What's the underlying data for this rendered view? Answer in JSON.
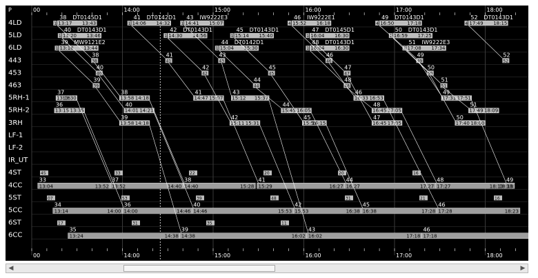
{
  "colors": {
    "background": "#000000",
    "line": "#ffffff",
    "grid": "#3a3a3a",
    "box": "#bdbdbd",
    "bar": "#9e9e9e",
    "cursor": "#ffffff"
  },
  "corner_label": "P",
  "stations": [
    "4LD",
    "5LD",
    "6LD",
    "443",
    "453",
    "463",
    "5RH-1",
    "5RH-2",
    "3RH",
    "LF-1",
    "LF-2",
    "IR_UT",
    "4ST",
    "4CC",
    "5ST",
    "5CC",
    "6ST",
    "6CC"
  ],
  "axis": {
    "start_hour": 13,
    "end_hour": 18.9,
    "top_labels": [
      "00",
      "14:00",
      "15:00",
      "16:00",
      "17:00",
      "18:00"
    ],
    "bottom_labels": [
      "00",
      "14:00",
      "15:00",
      "16:00",
      "17:00",
      "18:00"
    ]
  },
  "loader_ops": [
    {
      "row": "4LD",
      "num": "38",
      "code": "DT0145D1",
      "tag": "1",
      "from": "13:17",
      "to": "13:43"
    },
    {
      "row": "4LD",
      "num": "41",
      "code": "DT0142D1",
      "tag": "1",
      "from": "14:06",
      "to": "14:32"
    },
    {
      "row": "4LD",
      "num": "43",
      "code": "IW9222E3",
      "tag": "1",
      "from": "14:41",
      "to": "15:07"
    },
    {
      "row": "4LD",
      "num": "46",
      "code": "IW9222E1",
      "tag": "4",
      "from": "15:52",
      "to": "16:18"
    },
    {
      "row": "4LD",
      "num": "49",
      "code": "DT0143D1",
      "tag": "4",
      "from": "16:50",
      "to": "17:18"
    },
    {
      "row": "4LD",
      "num": "52",
      "code": "DT0143D1",
      "tag": "4",
      "from": "17:49",
      "to": "18:15"
    },
    {
      "row": "5LD",
      "num": "40",
      "code": "DT0143D1",
      "tag": "1",
      "from": "13:20",
      "to": "13:46"
    },
    {
      "row": "5LD",
      "num": "42",
      "code": "DT0143D1",
      "tag": "1",
      "from": "14:30",
      "to": "14:56"
    },
    {
      "row": "5LD",
      "num": "45",
      "code": "DT0143D1",
      "tag": "1",
      "from": "15:14",
      "to": "15:40"
    },
    {
      "row": "5LD",
      "num": "47",
      "code": "DT0145D1",
      "tag": "1",
      "from": "16:04",
      "to": "16:30"
    },
    {
      "row": "5LD",
      "num": "50",
      "code": "DT0143D1",
      "tag": "1",
      "from": "16:59",
      "to": "17:25"
    },
    {
      "row": "6LD",
      "num": "39",
      "code": "MW9121E2",
      "tag": "1",
      "from": "13:18",
      "to": "13:44"
    },
    {
      "row": "6LD",
      "num": "44",
      "code": "DT0142D1",
      "tag": "1",
      "from": "15:04",
      "to": "15:30"
    },
    {
      "row": "6LD",
      "num": "48",
      "code": "DT0143D1",
      "tag": "1",
      "from": "16:04",
      "to": "16:30"
    },
    {
      "row": "6LD",
      "num": "51",
      "code": "IW9222E3",
      "tag": "1",
      "from": "17:08",
      "to": "17:34"
    }
  ],
  "mid_ops": [
    {
      "row": "443",
      "num": "38",
      "tag": "38"
    },
    {
      "row": "443",
      "num": "41",
      "tag": "41"
    },
    {
      "row": "443",
      "num": "43",
      "tag": "43"
    },
    {
      "row": "443",
      "num": "46",
      "tag": "46"
    },
    {
      "row": "443",
      "num": "49",
      "tag": "49"
    },
    {
      "row": "443",
      "num": "52",
      "tag": "52"
    },
    {
      "row": "453",
      "num": "40",
      "tag": "40"
    },
    {
      "row": "453",
      "num": "42",
      "tag": "42"
    },
    {
      "row": "453",
      "num": "45",
      "tag": "45"
    },
    {
      "row": "453",
      "num": "47",
      "tag": "47"
    },
    {
      "row": "453",
      "num": "50",
      "tag": "50"
    },
    {
      "row": "463",
      "num": "39",
      "tag": "39"
    },
    {
      "row": "463",
      "num": "44",
      "tag": "44"
    },
    {
      "row": "463",
      "num": "48",
      "tag": "48"
    },
    {
      "row": "463",
      "num": "51",
      "tag": "51"
    }
  ],
  "rh_ops": [
    {
      "row": "5RH-1",
      "num": "37",
      "from": "13:16",
      "to": "13:30"
    },
    {
      "row": "5RH-1",
      "num": "38",
      "from": "13:58",
      "to": "14:18"
    },
    {
      "row": "5RH-1",
      "num": "41",
      "from": "14:47",
      "to": "15:07"
    },
    {
      "row": "5RH-1",
      "num": "43",
      "from": "15:12",
      "to": "15:37"
    },
    {
      "row": "5RH-1",
      "num": "46",
      "from": "16:33",
      "to": "16:53"
    },
    {
      "row": "5RH-1",
      "num": "49",
      "from": "17:31",
      "to": "17:51"
    },
    {
      "row": "5RH-2",
      "num": "36",
      "from": "13:15",
      "to": "13:35"
    },
    {
      "row": "5RH-2",
      "num": "40",
      "from": "14:01",
      "to": "14:21"
    },
    {
      "row": "5RH-2",
      "num": "44",
      "from": "15:45",
      "to": "16:05"
    },
    {
      "row": "5RH-2",
      "num": "48",
      "from": "16:45",
      "to": "17:05"
    },
    {
      "row": "5RH-2",
      "num": "51",
      "from": "17:49",
      "to": "18:09"
    },
    {
      "row": "3RH",
      "num": "39",
      "from": "13:58",
      "to": "14:18"
    },
    {
      "row": "3RH",
      "num": "42",
      "from": "15:11",
      "to": "15:31"
    },
    {
      "row": "3RH",
      "num": "45",
      "from": "15:59",
      "to": "16:15"
    },
    {
      "row": "3RH",
      "num": "47",
      "from": "16:45",
      "to": "17:05"
    },
    {
      "row": "3RH",
      "num": "50",
      "from": "17:40",
      "to": "18:00"
    }
  ],
  "st_ops": [
    {
      "row": "4ST",
      "tag": "45"
    },
    {
      "row": "4ST",
      "tag": "33"
    },
    {
      "row": "4ST",
      "tag": "22"
    },
    {
      "row": "4ST",
      "tag": "20"
    },
    {
      "row": "4ST",
      "tag": "20"
    },
    {
      "row": "4ST",
      "tag": "16"
    },
    {
      "row": "5ST",
      "tag": "07"
    },
    {
      "row": "5ST",
      "tag": "53"
    },
    {
      "row": "5ST",
      "tag": "39"
    },
    {
      "row": "5ST",
      "tag": "48"
    },
    {
      "row": "5ST",
      "tag": "31"
    },
    {
      "row": "5ST",
      "tag": "21"
    },
    {
      "row": "5ST",
      "tag": "16"
    },
    {
      "row": "6ST",
      "tag": "17"
    },
    {
      "row": "6ST",
      "tag": "31"
    },
    {
      "row": "6ST",
      "tag": "35"
    },
    {
      "row": "6ST",
      "tag": "11"
    }
  ],
  "cc_bars": [
    {
      "row": "4CC",
      "num": "33",
      "from": "13:04",
      "to": "13:52"
    },
    {
      "row": "4CC",
      "num": "37",
      "from": "13:52",
      "to": "14:40"
    },
    {
      "row": "4CC",
      "num": "38",
      "from": "14:40",
      "to": "15:28"
    },
    {
      "row": "4CC",
      "num": "41",
      "from": "15:29",
      "to": "16:27"
    },
    {
      "row": "4CC",
      "num": "44",
      "from": "16:27",
      "to": "17:27"
    },
    {
      "row": "4CC",
      "num": "48",
      "from": "17:27",
      "to": "18:13"
    },
    {
      "row": "4CC",
      "num": "49",
      "from": "18:13",
      "to": "18:13"
    },
    {
      "row": "5CC",
      "num": "34",
      "from": "13:14",
      "to": "14:00"
    },
    {
      "row": "5CC",
      "num": "36",
      "from": "14:00",
      "to": "14:46"
    },
    {
      "row": "5CC",
      "num": "40",
      "from": "14:46",
      "to": "15:53"
    },
    {
      "row": "5CC",
      "num": "42",
      "from": "15:53",
      "to": "16:38"
    },
    {
      "row": "5CC",
      "num": "45",
      "from": "16:38",
      "to": "17:28"
    },
    {
      "row": "5CC",
      "num": "46",
      "from": "17:28",
      "to": "18:23"
    },
    {
      "row": "6CC",
      "num": "35",
      "from": "13:24",
      "to": "14:38"
    },
    {
      "row": "6CC",
      "num": "39",
      "from": "14:38",
      "to": "16:02"
    },
    {
      "row": "6CC",
      "num": "43",
      "from": "16:02",
      "to": "17:18"
    },
    {
      "row": "6CC",
      "num": "46",
      "from": "17:18",
      "to": "18:46"
    }
  ],
  "cursor_time": "14:25"
}
